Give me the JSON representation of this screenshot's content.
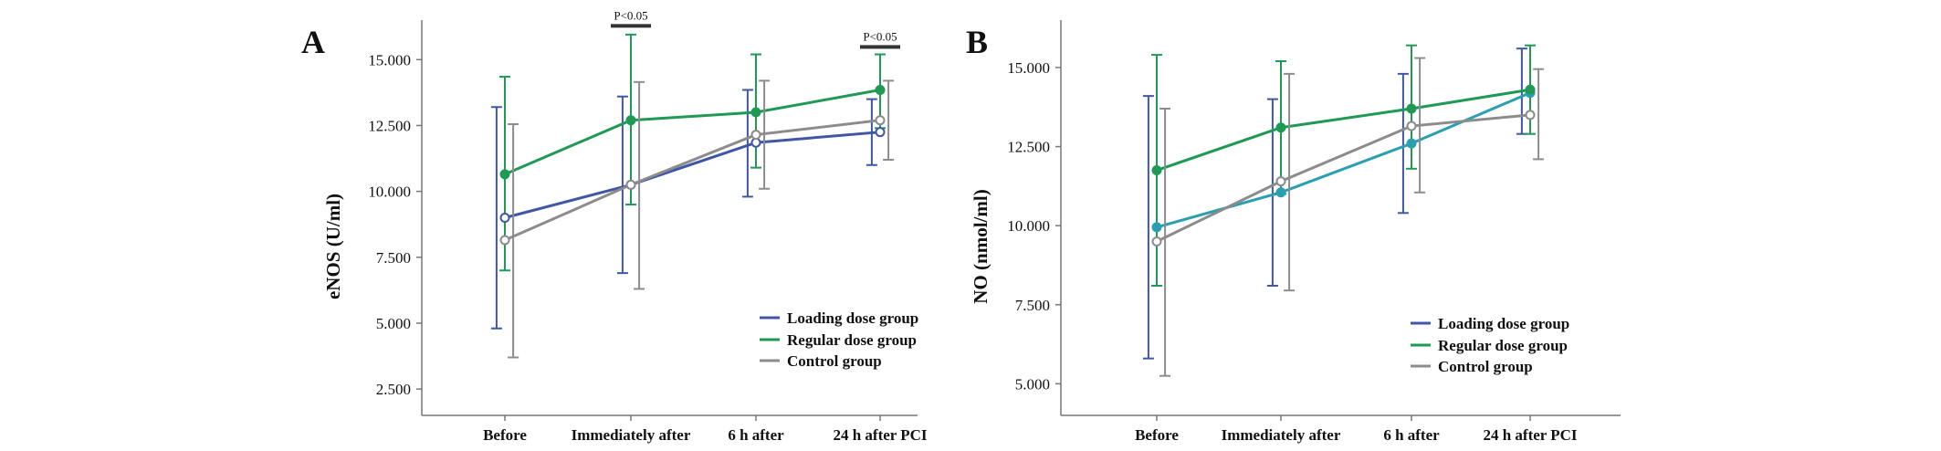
{
  "chart_data": [
    {
      "panel": "A",
      "type": "line",
      "ylabel": "eNOS (U/ml)",
      "xlabel": "",
      "ylim": [
        1.5,
        16.5
      ],
      "yticks": [
        "2.500",
        "5.000",
        "7.500",
        "10.000",
        "12.500",
        "15.000"
      ],
      "yticks_values": [
        2.5,
        5.0,
        7.5,
        10.0,
        12.5,
        15.0
      ],
      "categories": [
        "Before",
        "Immediately after",
        "6 h after",
        "24 h after PCI"
      ],
      "legend": "bottom-right",
      "grid": false,
      "series": [
        {
          "name": "Loading dose group",
          "color": "#3f57a6",
          "marker": "open-circle",
          "values": [
            9.0,
            10.25,
            11.85,
            12.25
          ],
          "lower": [
            4.8,
            6.9,
            9.8,
            11.0
          ],
          "upper": [
            13.2,
            13.6,
            13.85,
            13.5
          ]
        },
        {
          "name": "Regular dose group",
          "color": "#1f9a55",
          "marker": "filled-circle",
          "values": [
            10.65,
            12.7,
            13.0,
            13.85
          ],
          "lower": [
            7.0,
            9.5,
            10.9,
            12.4
          ],
          "upper": [
            14.35,
            15.95,
            15.2,
            15.2
          ]
        },
        {
          "name": "Control group",
          "color": "#8c8c8c",
          "marker": "open-circle",
          "values": [
            8.15,
            10.25,
            12.15,
            12.7
          ],
          "lower": [
            3.7,
            6.3,
            10.1,
            11.2
          ],
          "upper": [
            12.55,
            14.15,
            14.2,
            14.2
          ]
        }
      ],
      "annotations": [
        {
          "text": "P<0.05",
          "category": "Immediately after",
          "y": 16.35
        },
        {
          "text": "P<0.05",
          "category": "24 h after PCI",
          "y": 15.55
        }
      ]
    },
    {
      "panel": "B",
      "type": "line",
      "ylabel": "NO (nmol/ml)",
      "xlabel": "",
      "ylim": [
        4.0,
        16.5
      ],
      "yticks": [
        "5.000",
        "7.500",
        "10.000",
        "12.500",
        "15.000"
      ],
      "yticks_values": [
        5.0,
        7.5,
        10.0,
        12.5,
        15.0
      ],
      "categories": [
        "Before",
        "Immediately after",
        "6 h after",
        "24 h after PCI"
      ],
      "legend": "bottom-right",
      "grid": false,
      "series": [
        {
          "name": "Loading dose group",
          "color": "#2a9fb0",
          "bar_color": "#3f57a6",
          "marker": "filled-circle",
          "values": [
            9.95,
            11.05,
            12.6,
            14.2
          ],
          "lower": [
            5.8,
            8.1,
            10.4,
            12.9
          ],
          "upper": [
            14.1,
            14.0,
            14.8,
            15.6
          ]
        },
        {
          "name": "Regular dose group",
          "color": "#1f9a55",
          "marker": "filled-circle",
          "values": [
            11.75,
            13.1,
            13.7,
            14.3
          ],
          "lower": [
            8.1,
            11.0,
            11.8,
            12.9
          ],
          "upper": [
            15.4,
            15.2,
            15.7,
            15.7
          ]
        },
        {
          "name": "Control group",
          "color": "#8c8c8c",
          "marker": "open-circle",
          "values": [
            9.5,
            11.4,
            13.15,
            13.5
          ],
          "lower": [
            5.25,
            7.95,
            11.05,
            12.1
          ],
          "upper": [
            13.7,
            14.8,
            15.3,
            14.95
          ]
        }
      ],
      "annotations": []
    }
  ]
}
